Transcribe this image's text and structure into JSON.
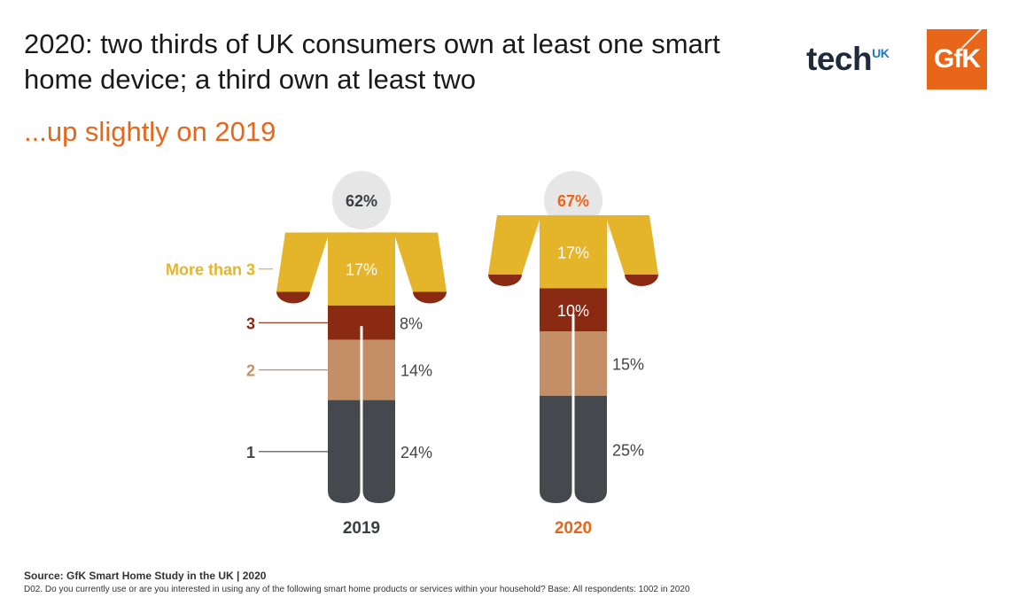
{
  "header": {
    "title": "2020: two thirds of UK consumers own at least one smart home device; a third own at least two",
    "subtitle": "...up slightly on 2019"
  },
  "logos": {
    "tech_text": "tech",
    "tech_sup": "UK",
    "gfk_text": "GfK"
  },
  "footer": {
    "source": "Source: GfK Smart Home Study in the UK | 2020",
    "note": "D02. Do you currently use or are you interested in using any of the following smart home products or services within your household? Base: All respondents: 1002 in 2020"
  },
  "colors": {
    "head": "#e6e6e6",
    "body_empty": "#ebebeb",
    "more_than_3": "#e4b52a",
    "three": "#8b2a12",
    "two": "#c48f66",
    "one": "#45484d",
    "accent_2020": "#e8661a",
    "year_2019": "#3a3d42"
  },
  "chart_data": {
    "type": "stacked-figure",
    "categories": [
      "1",
      "2",
      "3",
      "More than 3"
    ],
    "series": [
      {
        "name": "2019",
        "total": "62%",
        "values": [
          24,
          14,
          8,
          17
        ],
        "labels": [
          "24%",
          "14%",
          "8%",
          "17%"
        ]
      },
      {
        "name": "2020",
        "total": "67%",
        "values": [
          25,
          15,
          10,
          17
        ],
        "labels": [
          "25%",
          "15%",
          "10%",
          "17%"
        ]
      }
    ]
  }
}
